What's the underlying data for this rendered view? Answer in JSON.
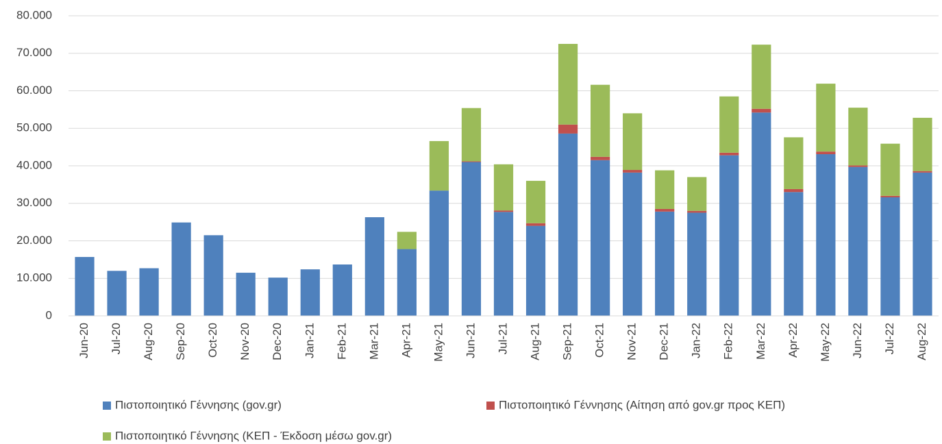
{
  "chart_data": {
    "type": "stacked_bar",
    "categories": [
      "Jun-20",
      "Jul-20",
      "Aug-20",
      "Sep-20",
      "Oct-20",
      "Nov-20",
      "Dec-20",
      "Jan-21",
      "Feb-21",
      "Mar-21",
      "Apr-21",
      "May-21",
      "Jun-21",
      "Jul-21",
      "Aug-21",
      "Sep-21",
      "Oct-21",
      "Nov-21",
      "Dec-21",
      "Jan-22",
      "Feb-22",
      "Mar-22",
      "Apr-22",
      "May-22",
      "Jun-22",
      "Jul-22",
      "Aug-22"
    ],
    "series": [
      {
        "name": "Πιστοποιητικό Γέννησης (gov.gr)",
        "color": "#4f81bd",
        "values": [
          15700,
          12000,
          12700,
          24900,
          21500,
          11500,
          10200,
          12400,
          13700,
          26300,
          17800,
          33400,
          41000,
          27700,
          24000,
          48600,
          41500,
          38200,
          27800,
          27500,
          42800,
          54200,
          33000,
          43100,
          39700,
          31600,
          38200
        ]
      },
      {
        "name": "Πιστοποιητικό Γέννησης (Αίτηση από gov.gr προς ΚΕΠ)",
        "color": "#c0504d",
        "values": [
          0,
          0,
          0,
          0,
          0,
          0,
          0,
          0,
          0,
          0,
          0,
          0,
          200,
          400,
          700,
          2400,
          900,
          700,
          700,
          500,
          700,
          1000,
          800,
          700,
          400,
          400,
          400
        ]
      },
      {
        "name": "Πιστοποιητικό Γέννησης (ΚΕΠ - Έκδοση μέσω gov.gr)",
        "color": "#9bbb59",
        "values": [
          0,
          0,
          0,
          0,
          0,
          0,
          0,
          0,
          0,
          0,
          4600,
          13200,
          14200,
          12300,
          11300,
          21500,
          19200,
          15100,
          10300,
          9000,
          15000,
          17100,
          13800,
          18100,
          15400,
          13900,
          14200
        ]
      }
    ],
    "ylim": [
      0,
      80000
    ],
    "yticks": [
      0,
      {
        "value": 10000,
        "label": "10.000"
      },
      {
        "value": 20000,
        "label": "20.000"
      },
      {
        "value": 30000,
        "label": "30.000"
      },
      {
        "value": 40000,
        "label": "40.000"
      },
      {
        "value": 50000,
        "label": "50.000"
      },
      {
        "value": 60000,
        "label": "60.000"
      },
      {
        "value": 70000,
        "label": "70.000"
      },
      {
        "value": 80000,
        "label": "80.000"
      }
    ],
    "grid": true
  }
}
